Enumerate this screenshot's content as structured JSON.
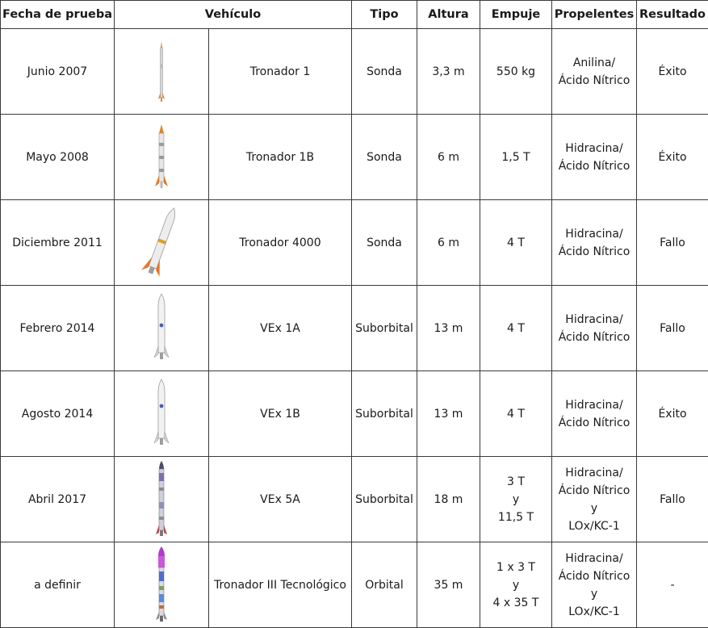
{
  "headers": [
    "Fecha de prueba",
    "Vehículo",
    "Tipo",
    "Altura",
    "Empuje",
    "Propelentes",
    "Resultado"
  ],
  "rows": [
    {
      "date": "Junio 2007",
      "vehicle": "Tronador 1",
      "type": "Sonda",
      "height": "3,3 m",
      "thrust": [
        "550 kg"
      ],
      "propellants": [
        "Anilina/",
        "Ácido Nítrico"
      ],
      "result": "Éxito",
      "rocket_icon": "tronador-1-rocket-icon"
    },
    {
      "date": "Mayo 2008",
      "vehicle": "Tronador 1B",
      "type": "Sonda",
      "height": "6 m",
      "thrust": [
        "1,5 T"
      ],
      "propellants": [
        "Hidracina/",
        "Ácido Nítrico"
      ],
      "result": "Éxito",
      "rocket_icon": "tronador-1b-rocket-icon"
    },
    {
      "date": "Diciembre 2011",
      "vehicle": "Tronador 4000",
      "type": "Sonda",
      "height": "6 m",
      "thrust": [
        "4 T"
      ],
      "propellants": [
        "Hidracina/",
        "Ácido Nítrico"
      ],
      "result": "Fallo",
      "rocket_icon": "tronador-4000-rocket-icon"
    },
    {
      "date": "Febrero 2014",
      "vehicle": "VEx 1A",
      "type": "Suborbital",
      "height": "13 m",
      "thrust": [
        "4 T"
      ],
      "propellants": [
        "Hidracina/",
        "Ácido Nítrico"
      ],
      "result": "Fallo",
      "rocket_icon": "vex-1a-rocket-icon"
    },
    {
      "date": "Agosto 2014",
      "vehicle": "VEx 1B",
      "type": "Suborbital",
      "height": "13 m",
      "thrust": [
        "4 T"
      ],
      "propellants": [
        "Hidracina/",
        "Ácido Nítrico"
      ],
      "result": "Éxito",
      "rocket_icon": "vex-1b-rocket-icon"
    },
    {
      "date": "Abril 2017",
      "vehicle": "VEx 5A",
      "type": "Suborbital",
      "height": "18 m",
      "thrust": [
        "3 T",
        "y",
        "11,5 T"
      ],
      "propellants": [
        "Hidracina/",
        "Ácido Nítrico",
        "y",
        "LOx/KC-1"
      ],
      "result": "Fallo",
      "rocket_icon": "vex-5a-rocket-icon"
    },
    {
      "date": "a definir",
      "vehicle": "Tronador III Tecnológico",
      "type": "Orbital",
      "height": "35 m",
      "thrust": [
        "1 x 3 T",
        "y",
        "4 x 35 T"
      ],
      "propellants": [
        "Hidracina/",
        "Ácido Nítrico",
        "y",
        "LOx/KC-1"
      ],
      "result": "-",
      "rocket_icon": "tronador-iii-rocket-icon"
    }
  ]
}
